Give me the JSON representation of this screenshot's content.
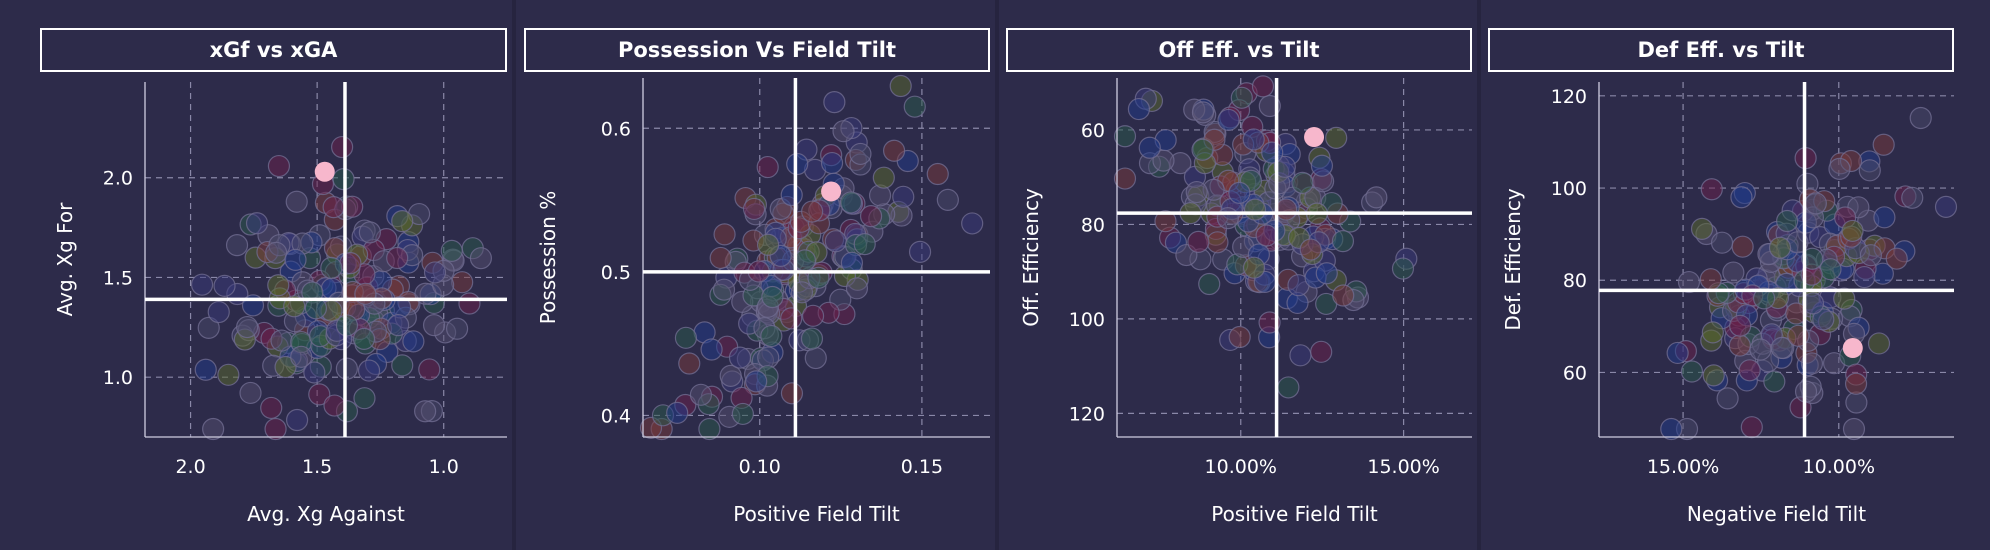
{
  "colors": {
    "background": "#2d2b4a",
    "grid": "#8a88a8",
    "reference_line": "#ffffff",
    "highlight": "#f7b7cc",
    "point_palette": [
      "#1f3a8a",
      "#6b1f4a",
      "#5a6a2a",
      "#2a5a4a",
      "#4a4a6a",
      "#7a3a3a",
      "#3a3a7a",
      "#555070"
    ]
  },
  "chart_data": [
    {
      "type": "scatter",
      "title": "xGf vs xGA",
      "xlabel": "Avg. Xg Against",
      "ylabel": "Avg. Xg For",
      "xlim": [
        0.75,
        2.18
      ],
      "ylim": [
        0.7,
        2.48
      ],
      "x_reversed": true,
      "y_reversed": false,
      "xticks": [
        {
          "value": 2.0,
          "label": "2.0"
        },
        {
          "value": 1.5,
          "label": "1.5"
        },
        {
          "value": 1.0,
          "label": "1.0"
        }
      ],
      "yticks": [
        {
          "value": 2.0,
          "label": "2.0"
        },
        {
          "value": 1.5,
          "label": "1.5"
        },
        {
          "value": 1.0,
          "label": "1.0"
        }
      ],
      "reference_lines": {
        "x": 1.39,
        "y": 1.39
      },
      "highlight_point": {
        "x": 1.47,
        "y": 2.03
      },
      "background_points": {
        "count": 190,
        "seed": 11,
        "mean_x": 1.4,
        "sd_x": 0.22,
        "mean_y": 1.4,
        "sd_y": 0.26,
        "corr": 0.0
      }
    },
    {
      "type": "scatter",
      "title": "Possession Vs Field Tilt",
      "xlabel": "Positive Field Tilt",
      "ylabel": "Possession %",
      "xlim": [
        0.064,
        0.171
      ],
      "ylim": [
        0.385,
        0.635
      ],
      "x_reversed": false,
      "y_reversed": false,
      "xticks": [
        {
          "value": 0.1,
          "label": "0.10"
        },
        {
          "value": 0.15,
          "label": "0.15"
        }
      ],
      "yticks": [
        {
          "value": 0.6,
          "label": "0.6"
        },
        {
          "value": 0.5,
          "label": "0.5"
        },
        {
          "value": 0.4,
          "label": "0.4"
        }
      ],
      "reference_lines": {
        "x": 0.111,
        "y": 0.5
      },
      "highlight_point": {
        "x": 0.122,
        "y": 0.556
      },
      "background_points": {
        "count": 190,
        "seed": 23,
        "mean_x": 0.111,
        "sd_x": 0.016,
        "mean_y": 0.5,
        "sd_y": 0.045,
        "corr": 0.6
      }
    },
    {
      "type": "scatter",
      "title": "Off Eff. vs Tilt",
      "xlabel": "Positive Field Tilt",
      "ylabel": "Off. Efficiency",
      "xlim": [
        0.062,
        0.171
      ],
      "ylim": [
        49,
        125
      ],
      "x_reversed": false,
      "y_reversed": true,
      "xticks": [
        {
          "value": 0.1,
          "label": "10.00%"
        },
        {
          "value": 0.15,
          "label": "15.00%"
        }
      ],
      "yticks": [
        {
          "value": 60,
          "label": "60"
        },
        {
          "value": 80,
          "label": "80"
        },
        {
          "value": 100,
          "label": "100"
        },
        {
          "value": 120,
          "label": "120"
        }
      ],
      "reference_lines": {
        "x": 0.111,
        "y": 77.6
      },
      "highlight_point": {
        "x": 0.1225,
        "y": 61.5
      },
      "background_points": {
        "count": 190,
        "seed": 37,
        "mean_x": 0.106,
        "sd_x": 0.016,
        "mean_y": 77,
        "sd_y": 13,
        "corr": 0.4
      }
    },
    {
      "type": "scatter",
      "title": "Def Eff. vs Tilt",
      "xlabel": "Negative Field Tilt",
      "ylabel": "Def. Efficiency",
      "xlim": [
        0.063,
        0.177
      ],
      "ylim": [
        46,
        123
      ],
      "x_reversed": true,
      "y_reversed": false,
      "xticks": [
        {
          "value": 0.15,
          "label": "15.00%"
        },
        {
          "value": 0.1,
          "label": "10.00%"
        }
      ],
      "yticks": [
        {
          "value": 120,
          "label": "120"
        },
        {
          "value": 100,
          "label": "100"
        },
        {
          "value": 80,
          "label": "80"
        },
        {
          "value": 60,
          "label": "60"
        }
      ],
      "reference_lines": {
        "x": 0.111,
        "y": 77.8
      },
      "highlight_point": {
        "x": 0.0955,
        "y": 65.3
      },
      "background_points": {
        "count": 190,
        "seed": 53,
        "mean_x": 0.113,
        "sd_x": 0.017,
        "mean_y": 78,
        "sd_y": 14,
        "corr": -0.5
      }
    }
  ]
}
